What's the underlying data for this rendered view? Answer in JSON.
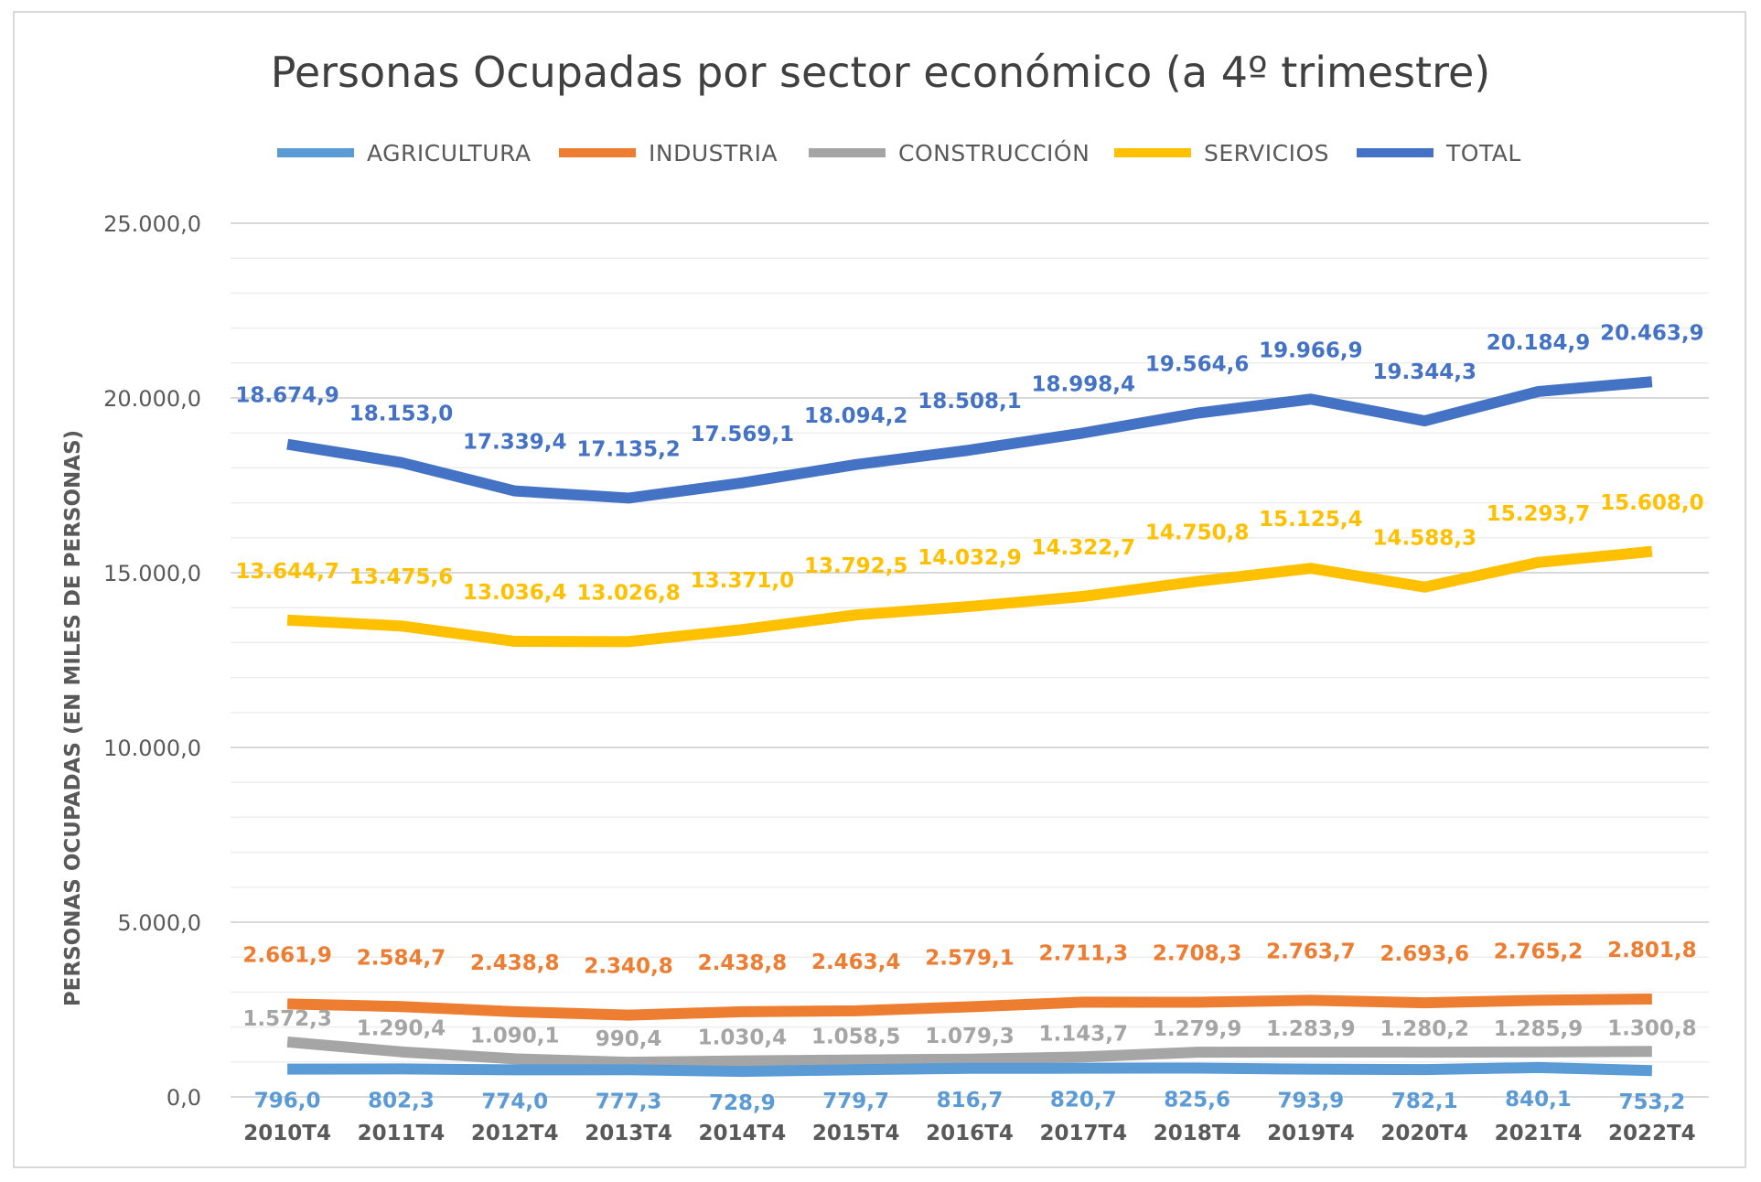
{
  "chart_data": {
    "type": "line",
    "title": "Personas Ocupadas por sector económico (a 4º trimestre)",
    "xlabel": "",
    "ylabel": "PERSONAS OCUPADAS (EN MILES DE PERSONAS)",
    "ylim": [
      0,
      25000
    ],
    "ytick_labels": [
      "0,0",
      "5.000,0",
      "10.000,0",
      "15.000,0",
      "20.000,0",
      "25.000,0"
    ],
    "ytick_values": [
      0,
      5000,
      10000,
      15000,
      20000,
      25000
    ],
    "grid": true,
    "legend_position": "top",
    "categories": [
      "2010T4",
      "2011T4",
      "2012T4",
      "2013T4",
      "2014T4",
      "2015T4",
      "2016T4",
      "2017T4",
      "2018T4",
      "2019T4",
      "2020T4",
      "2021T4",
      "2022T4"
    ],
    "series": [
      {
        "name": "AGRICULTURA",
        "color": "#5b9bd5",
        "values": [
          796.0,
          802.3,
          774.0,
          777.3,
          728.9,
          779.7,
          816.7,
          820.7,
          825.6,
          793.9,
          782.1,
          840.1,
          753.2
        ],
        "labels": [
          "796,0",
          "802,3",
          "774,0",
          "777,3",
          "728,9",
          "779,7",
          "816,7",
          "820,7",
          "825,6",
          "793,9",
          "782,1",
          "840,1",
          "753,2"
        ]
      },
      {
        "name": "INDUSTRIA",
        "color": "#ed7d31",
        "values": [
          2661.9,
          2584.7,
          2438.8,
          2340.8,
          2438.8,
          2463.4,
          2579.1,
          2711.3,
          2708.3,
          2763.7,
          2693.6,
          2765.2,
          2801.8
        ],
        "labels": [
          "2.661,9",
          "2.584,7",
          "2.438,8",
          "2.340,8",
          "2.438,8",
          "2.463,4",
          "2.579,1",
          "2.711,3",
          "2.708,3",
          "2.763,7",
          "2.693,6",
          "2.765,2",
          "2.801,8"
        ]
      },
      {
        "name": "CONSTRUCCIÓN",
        "color": "#a5a5a5",
        "values": [
          1572.3,
          1290.4,
          1090.1,
          990.4,
          1030.4,
          1058.5,
          1079.3,
          1143.7,
          1279.9,
          1283.9,
          1280.2,
          1285.9,
          1300.8
        ],
        "labels": [
          "1.572,3",
          "1.290,4",
          "1.090,1",
          "990,4",
          "1.030,4",
          "1.058,5",
          "1.079,3",
          "1.143,7",
          "1.279,9",
          "1.283,9",
          "1.280,2",
          "1.285,9",
          "1.300,8"
        ]
      },
      {
        "name": "SERVICIOS",
        "color": "#ffc000",
        "values": [
          13644.7,
          13475.6,
          13036.4,
          13026.8,
          13371.0,
          13792.5,
          14032.9,
          14322.7,
          14750.8,
          15125.4,
          14588.3,
          15293.7,
          15608.0
        ],
        "labels": [
          "13.644,7",
          "13.475,6",
          "13.036,4",
          "13.026,8",
          "13.371,0",
          "13.792,5",
          "14.032,9",
          "14.322,7",
          "14.750,8",
          "15.125,4",
          "14.588,3",
          "15.293,7",
          "15.608,0"
        ]
      },
      {
        "name": "TOTAL",
        "color": "#4472c4",
        "values": [
          18674.9,
          18153.0,
          17339.4,
          17135.2,
          17569.1,
          18094.2,
          18508.1,
          18998.4,
          19564.6,
          19966.9,
          19344.3,
          20184.9,
          20463.9
        ],
        "labels": [
          "18.674,9",
          "18.153,0",
          "17.339,4",
          "17.135,2",
          "17.569,1",
          "18.094,2",
          "18.508,1",
          "18.998,4",
          "19.564,6",
          "19.966,9",
          "19.344,3",
          "20.184,9",
          "20.463,9"
        ]
      }
    ]
  }
}
